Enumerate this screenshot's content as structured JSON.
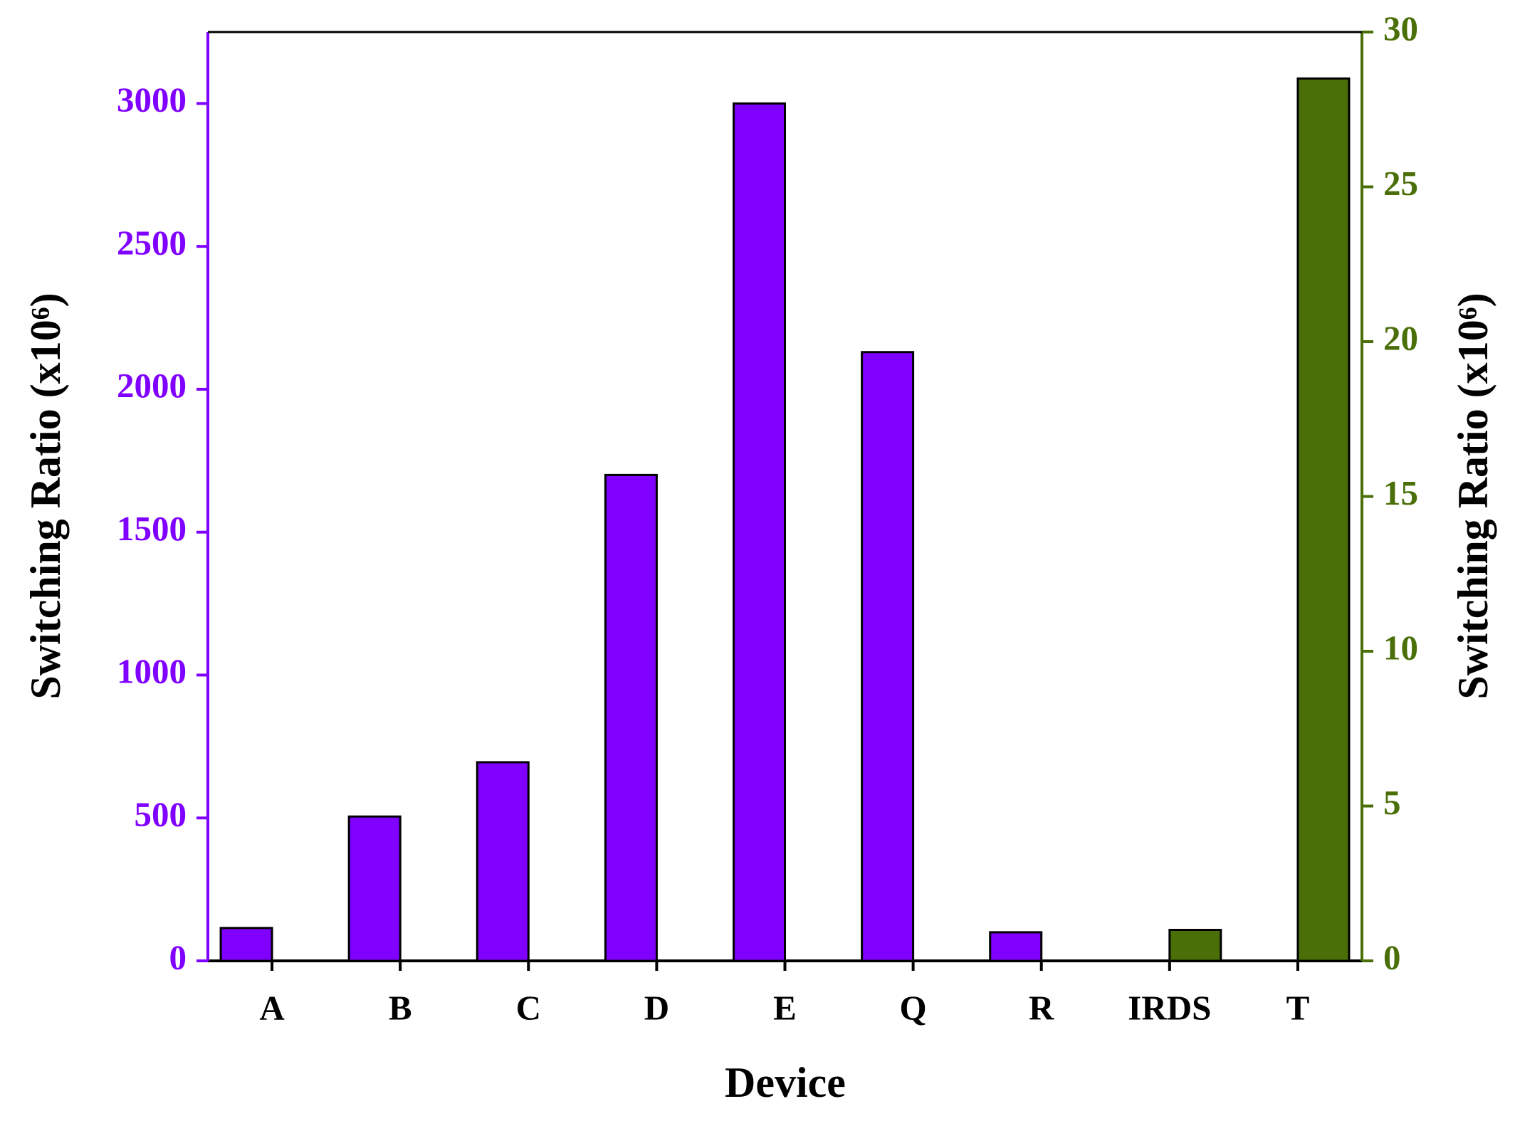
{
  "chart_data": {
    "type": "bar",
    "xlabel": "Device",
    "ylabel": "Switching Ratio (x10⁶)",
    "y2label": "Switching Ratio (x10⁶)",
    "categories": [
      "A",
      "B",
      "C",
      "D",
      "E",
      "Q",
      "R",
      "IRDS",
      "T"
    ],
    "series": [
      {
        "color": "#8000ff",
        "values": [
          115,
          505,
          695,
          1700,
          3000,
          2130,
          100,
          null,
          null
        ]
      },
      {
        "color": "#4a6f08",
        "axis": "y2",
        "values": [
          null,
          null,
          null,
          null,
          null,
          null,
          null,
          1,
          28.5
        ]
      }
    ],
    "ylim": [
      0,
      3250
    ],
    "yticks": [
      0,
      500,
      1000,
      1500,
      2000,
      2500,
      3000
    ],
    "ycolor": "#8000ff",
    "y2lim": [
      0,
      30
    ],
    "y2ticks": [
      0,
      5,
      10,
      15,
      20,
      25,
      30
    ],
    "y2color": "#4a6f08"
  }
}
